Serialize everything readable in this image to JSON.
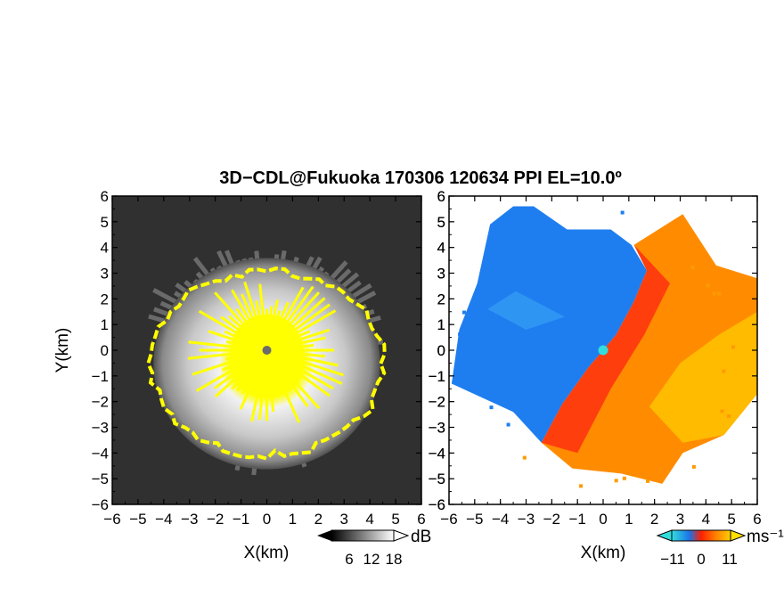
{
  "title": "3D−CDL@Fukuoka 170306 120634 PPI EL=10.0º",
  "left_panel": {
    "xlabel": "X(km)",
    "ylabel": "Y(km)",
    "colorbar": {
      "unit": "dB",
      "ticks": [
        "6",
        "12",
        "18"
      ]
    }
  },
  "right_panel": {
    "xlabel": "X(km)",
    "colorbar": {
      "unit": "ms⁻¹",
      "ticks": [
        "−11",
        "0",
        "11"
      ]
    }
  },
  "chart_data": [
    {
      "type": "heatmap",
      "name": "",
      "x_ticks": [
        "−6",
        "−5",
        "−4",
        "−3",
        "−2",
        "−1",
        "0",
        "1",
        "2",
        "3",
        "4",
        "5",
        "6"
      ],
      "y_ticks": [
        "−6",
        "−5",
        "−4",
        "−3",
        "−2",
        "−1",
        "0",
        "1",
        "2",
        "3",
        "4",
        "5",
        "6"
      ],
      "xlim": [
        -6,
        6
      ],
      "ylim": [
        -6,
        6
      ],
      "xlabel": "X(km)",
      "ylabel": "Y(km)",
      "colorbar_range": [
        6,
        18
      ],
      "colorbar_ticks": [
        6,
        12,
        18
      ],
      "colorbar_unit": "dB",
      "colorscale": "grayscale with yellow saturation",
      "colors": {
        "background": "#303030",
        "saturated": "#ffff00",
        "radar": "#6b6b6b"
      }
    },
    {
      "type": "heatmap",
      "name": "",
      "x_ticks": [
        "−6",
        "−5",
        "−4",
        "−3",
        "−2",
        "−1",
        "0",
        "1",
        "2",
        "3",
        "4",
        "5",
        "6"
      ],
      "y_ticks": [
        "−6",
        "−5",
        "−4",
        "−3",
        "−2",
        "−1",
        "0",
        "1",
        "2",
        "3",
        "4",
        "5",
        "6"
      ],
      "xlim": [
        -6,
        6
      ],
      "ylim": [
        -6,
        6
      ],
      "xlabel": "X(km)",
      "colorbar_range": [
        -11,
        11
      ],
      "colorbar_ticks": [
        -11,
        0,
        11
      ],
      "colorbar_unit": "ms⁻¹",
      "colorscale": "blue (approaching) to red/yellow (receding)",
      "colors": {
        "negative": "#1a73e8",
        "zero": "#ff2000",
        "positive": "#ffc800",
        "radar": "#33dddd"
      }
    }
  ]
}
